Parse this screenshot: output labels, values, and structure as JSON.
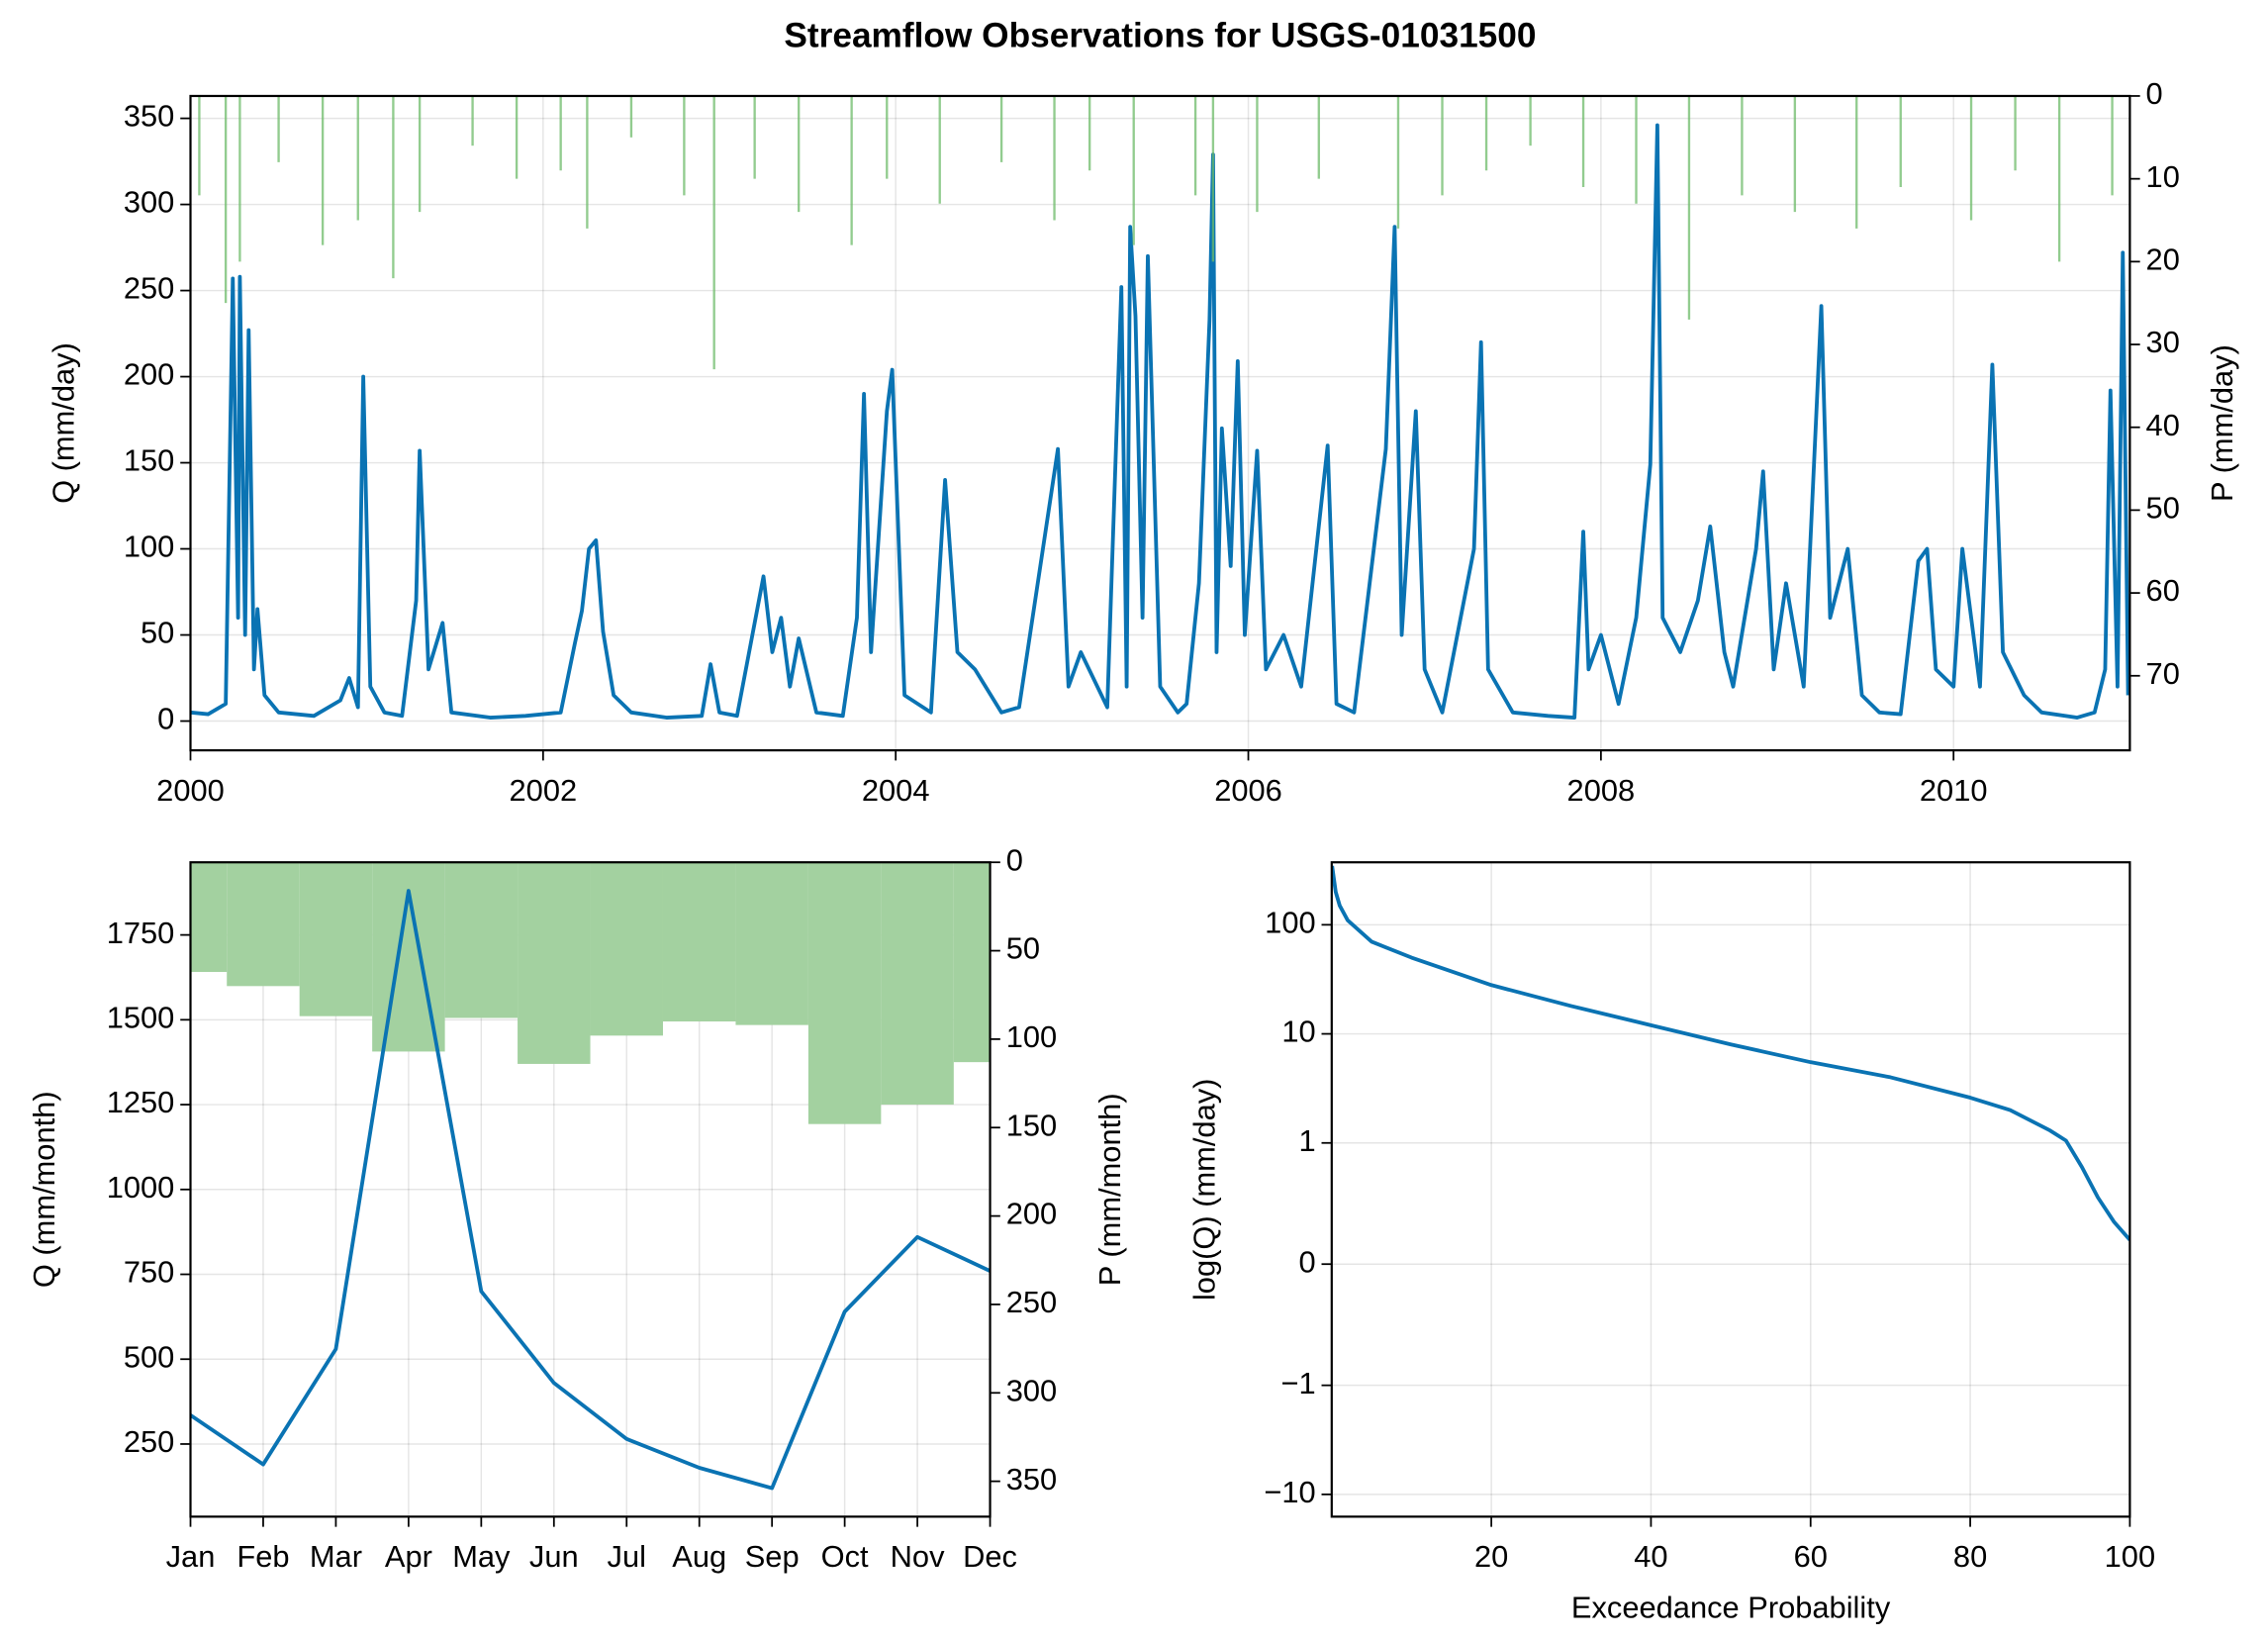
{
  "chart_data": [
    {
      "type": "line",
      "title": "Streamflow Observations for USGS-01031500",
      "ylabel": "Q (mm/day)",
      "y2label": "P (mm/day)",
      "xlim": [
        2000,
        2011
      ],
      "xticks": [
        2000,
        2002,
        2004,
        2006,
        2008,
        2010
      ],
      "ylim": [
        -17,
        363
      ],
      "yticks": [
        0,
        50,
        100,
        150,
        200,
        250,
        300,
        350
      ],
      "y2lim": [
        0,
        79
      ],
      "y2_inverted": true,
      "y2ticks": [
        0,
        10,
        20,
        30,
        40,
        50,
        60,
        70
      ],
      "grid": true,
      "series": [
        {
          "name": "Q",
          "color": "#0a73b3",
          "x": [
            2000.0,
            2000.1,
            2000.2,
            2000.24,
            2000.27,
            2000.28,
            2000.31,
            2000.33,
            2000.36,
            2000.38,
            2000.42,
            2000.5,
            2000.7,
            2000.85,
            2000.9,
            2000.95,
            2000.98,
            2001.02,
            2001.1,
            2001.2,
            2001.28,
            2001.3,
            2001.35,
            2001.43,
            2001.48,
            2001.7,
            2001.9,
            2002.1,
            2002.18,
            2002.22,
            2002.26,
            2002.3,
            2002.34,
            2002.4,
            2002.5,
            2002.7,
            2002.9,
            2002.95,
            2003.0,
            2003.1,
            2003.25,
            2003.3,
            2003.35,
            2003.4,
            2003.45,
            2003.55,
            2003.7,
            2003.78,
            2003.82,
            2003.86,
            2003.95,
            2003.98,
            2004.05,
            2004.2,
            2004.28,
            2004.35,
            2004.45,
            2004.6,
            2004.7,
            2004.92,
            2004.98,
            2005.05,
            2005.2,
            2005.28,
            2005.31,
            2005.33,
            2005.36,
            2005.4,
            2005.43,
            2005.5,
            2005.6,
            2005.65,
            2005.72,
            2005.78,
            2005.8,
            2005.82,
            2005.85,
            2005.9,
            2005.94,
            2005.98,
            2006.05,
            2006.1,
            2006.2,
            2006.3,
            2006.45,
            2006.5,
            2006.6,
            2006.78,
            2006.83,
            2006.87,
            2006.95,
            2007.0,
            2007.1,
            2007.28,
            2007.32,
            2007.36,
            2007.5,
            2007.7,
            2007.85,
            2007.9,
            2007.93,
            2008.0,
            2008.1,
            2008.2,
            2008.28,
            2008.32,
            2008.35,
            2008.45,
            2008.55,
            2008.62,
            2008.7,
            2008.75,
            2008.88,
            2008.92,
            2008.98,
            2009.05,
            2009.15,
            2009.25,
            2009.3,
            2009.4,
            2009.48,
            2009.58,
            2009.7,
            2009.8,
            2009.85,
            2009.9,
            2010.0,
            2010.05,
            2010.15,
            2010.22,
            2010.28,
            2010.4,
            2010.5,
            2010.7,
            2010.8,
            2010.86,
            2010.89,
            2010.93,
            2010.96,
            2010.99
          ],
          "values": [
            5,
            4,
            10,
            257,
            60,
            258,
            50,
            227,
            30,
            65,
            15,
            5,
            3,
            12,
            25,
            8,
            200,
            20,
            5,
            3,
            70,
            157,
            30,
            57,
            5,
            2,
            3,
            5,
            45,
            64,
            100,
            105,
            52,
            15,
            5,
            2,
            3,
            33,
            5,
            3,
            84,
            40,
            60,
            20,
            48,
            5,
            3,
            60,
            190,
            40,
            180,
            204,
            15,
            5,
            140,
            40,
            30,
            5,
            8,
            158,
            20,
            40,
            8,
            252,
            20,
            287,
            235,
            60,
            270,
            20,
            5,
            10,
            80,
            233,
            329,
            40,
            170,
            90,
            209,
            50,
            157,
            30,
            50,
            20,
            160,
            10,
            5,
            158,
            287,
            50,
            180,
            30,
            5,
            100,
            220,
            30,
            5,
            3,
            2,
            110,
            30,
            50,
            10,
            60,
            149,
            346,
            60,
            40,
            70,
            113,
            40,
            20,
            100,
            145,
            30,
            80,
            20,
            241,
            60,
            100,
            15,
            5,
            4,
            93,
            100,
            30,
            20,
            100,
            20,
            207,
            40,
            15,
            5,
            2,
            5,
            30,
            192,
            20,
            272,
            15
          ]
        },
        {
          "name": "P",
          "type": "bar",
          "axis": "y2",
          "color": "#6dbb69",
          "x": [
            2000.05,
            2000.2,
            2000.28,
            2000.5,
            2000.75,
            2000.95,
            2001.15,
            2001.3,
            2001.6,
            2001.85,
            2002.1,
            2002.25,
            2002.5,
            2002.8,
            2002.97,
            2003.2,
            2003.45,
            2003.75,
            2003.95,
            2004.25,
            2004.6,
            2004.9,
            2005.1,
            2005.35,
            2005.7,
            2005.8,
            2006.05,
            2006.4,
            2006.85,
            2007.1,
            2007.35,
            2007.6,
            2007.9,
            2008.2,
            2008.5,
            2008.8,
            2009.1,
            2009.45,
            2009.7,
            2010.1,
            2010.35,
            2010.6,
            2010.9
          ],
          "values": [
            12,
            25,
            20,
            8,
            18,
            15,
            22,
            14,
            6,
            10,
            9,
            16,
            5,
            12,
            33,
            10,
            14,
            18,
            10,
            13,
            8,
            15,
            9,
            18,
            12,
            20,
            14,
            10,
            16,
            12,
            9,
            6,
            11,
            13,
            27,
            12,
            14,
            16,
            11,
            15,
            9,
            20,
            12
          ]
        }
      ]
    },
    {
      "type": "line",
      "ylabel": "Q (mm/month)",
      "y2label": "P (mm/month)",
      "categories": [
        "Jan",
        "Feb",
        "Mar",
        "Apr",
        "May",
        "Jun",
        "Jul",
        "Aug",
        "Sep",
        "Oct",
        "Nov",
        "Dec"
      ],
      "ylim": [
        36,
        1964
      ],
      "yticks": [
        250,
        500,
        750,
        1000,
        1250,
        1500,
        1750
      ],
      "y2lim": [
        0,
        370
      ],
      "y2_inverted": true,
      "y2ticks": [
        0,
        50,
        100,
        150,
        200,
        250,
        300,
        350
      ],
      "grid": true,
      "series": [
        {
          "name": "P",
          "type": "bar",
          "axis": "y2",
          "color": "#a3d1a0",
          "values": [
            62,
            70,
            87,
            107,
            88,
            114,
            98,
            90,
            92,
            148,
            137,
            113
          ]
        },
        {
          "name": "Q",
          "color": "#0a73b3",
          "values": [
            335,
            190,
            530,
            1880,
            700,
            430,
            265,
            180,
            120,
            640,
            860,
            760
          ]
        }
      ]
    },
    {
      "type": "line",
      "ylabel": "log(Q) (mm/day)",
      "xlabel": "Exceedance Probability",
      "xlim": [
        0,
        100
      ],
      "xticks": [
        20,
        40,
        60,
        80,
        100
      ],
      "yscale": "symlog",
      "linthresh": 1,
      "ylim": [
        -16,
        374
      ],
      "yticks": [
        {
          "value": -10,
          "label": "−10"
        },
        {
          "value": -1,
          "label": "−1"
        },
        0,
        1,
        10,
        100
      ],
      "grid": true,
      "series": [
        {
          "name": "Q",
          "color": "#0a73b3",
          "x": [
            0.05,
            0.5,
            1,
            2,
            5,
            10,
            20,
            30,
            40,
            50,
            60,
            70,
            80,
            85,
            90,
            92,
            94,
            96,
            98,
            100
          ],
          "values": [
            346,
            200,
            150,
            110,
            70,
            50,
            28,
            18,
            12,
            8,
            5.5,
            4,
            2.6,
            2,
            1.3,
            1.05,
            0.8,
            0.55,
            0.35,
            0.2
          ]
        }
      ]
    }
  ]
}
